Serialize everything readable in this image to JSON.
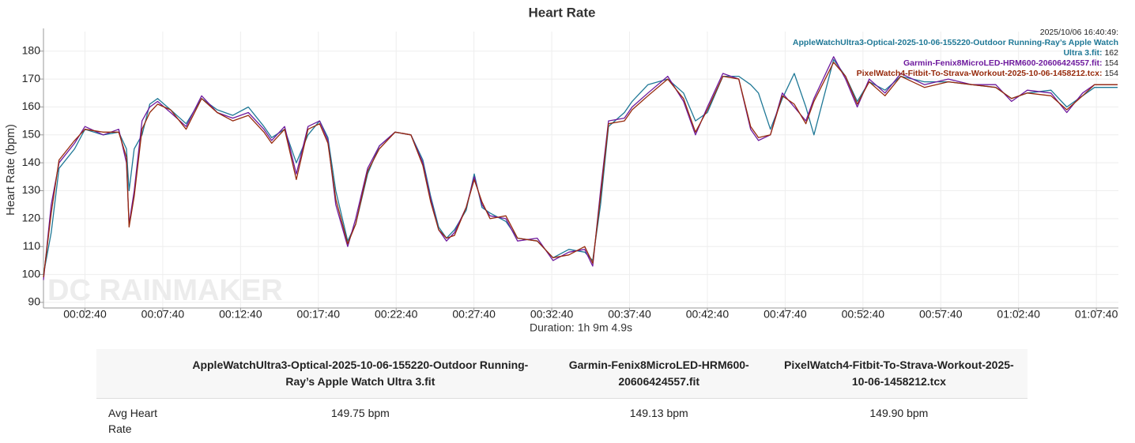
{
  "chart_data": {
    "type": "line",
    "title": "Heart Rate",
    "y_label": "Heart Rate (bpm)",
    "x_label": "Duration: 1h 9m 4.9s",
    "watermark": "DC RAINMAKER",
    "grid": true,
    "xlim": [
      0,
      4145
    ],
    "ylim": [
      88,
      187
    ],
    "yticks": [
      90,
      100,
      110,
      120,
      130,
      140,
      150,
      160,
      170,
      180
    ],
    "xticks": [
      {
        "value": 160,
        "label": "00:02:40"
      },
      {
        "value": 460,
        "label": "00:07:40"
      },
      {
        "value": 760,
        "label": "00:12:40"
      },
      {
        "value": 1060,
        "label": "00:17:40"
      },
      {
        "value": 1360,
        "label": "00:22:40"
      },
      {
        "value": 1660,
        "label": "00:27:40"
      },
      {
        "value": 1960,
        "label": "00:32:40"
      },
      {
        "value": 2260,
        "label": "00:37:40"
      },
      {
        "value": 2560,
        "label": "00:42:40"
      },
      {
        "value": 2860,
        "label": "00:47:40"
      },
      {
        "value": 3160,
        "label": "00:52:40"
      },
      {
        "value": 3460,
        "label": "00:57:40"
      },
      {
        "value": 3760,
        "label": "01:02:40"
      },
      {
        "value": 4060,
        "label": "01:07:40"
      }
    ],
    "x": [
      0,
      30,
      60,
      120,
      160,
      230,
      290,
      320,
      330,
      350,
      380,
      410,
      440,
      490,
      550,
      610,
      670,
      730,
      790,
      850,
      880,
      930,
      975,
      1020,
      1065,
      1097,
      1127,
      1173,
      1204,
      1250,
      1295,
      1356,
      1417,
      1463,
      1493,
      1524,
      1554,
      1585,
      1630,
      1661,
      1691,
      1722,
      1783,
      1828,
      1904,
      1965,
      2026,
      2087,
      2118,
      2148,
      2179,
      2240,
      2270,
      2331,
      2407,
      2468,
      2514,
      2560,
      2620,
      2681,
      2727,
      2757,
      2803,
      2849,
      2895,
      2940,
      2971,
      3047,
      3093,
      3138,
      3184,
      3245,
      3306,
      3397,
      3489,
      3580,
      3672,
      3733,
      3794,
      3885,
      3946,
      4007,
      4053,
      4142
    ],
    "series": [
      {
        "name": "AppleWatchUltra3-Optical-2025-10-06-155220-Outdoor Running-Ray’s Apple Watch Ultra 3.fit",
        "color": "#1f7896",
        "values": [
          100,
          115,
          138,
          145,
          152,
          150,
          151,
          145,
          130,
          145,
          150,
          161,
          163,
          159,
          154,
          163,
          159,
          157,
          160,
          153,
          149,
          152,
          140,
          150,
          155,
          149,
          130,
          112,
          118,
          136,
          146,
          151,
          150,
          141,
          128,
          117,
          113,
          116,
          123,
          136,
          124,
          122,
          119,
          113,
          112,
          106,
          109,
          108,
          105,
          125,
          153,
          158,
          162,
          168,
          170,
          165,
          155,
          158,
          171,
          171,
          168,
          165,
          152,
          163,
          172,
          160,
          150,
          177,
          171,
          162,
          169,
          166,
          171,
          169,
          169,
          168,
          167,
          163,
          165,
          166,
          160,
          164,
          167,
          167
        ]
      },
      {
        "name": "Garmin-Fenix8MicroLED-HRM600-20606424557.fit",
        "color": "#6e1a9e",
        "values": [
          98,
          125,
          140,
          147,
          153,
          150,
          152,
          140,
          118,
          130,
          155,
          160,
          162,
          158,
          153,
          164,
          158,
          156,
          158,
          152,
          148,
          153,
          136,
          153,
          155,
          148,
          125,
          110,
          120,
          138,
          146,
          151,
          150,
          140,
          127,
          116,
          112,
          115,
          124,
          135,
          125,
          121,
          120,
          112,
          113,
          105,
          108,
          109,
          103,
          130,
          155,
          156,
          160,
          165,
          171,
          162,
          150,
          160,
          172,
          170,
          152,
          148,
          150,
          165,
          160,
          155,
          163,
          178,
          170,
          160,
          170,
          165,
          172,
          168,
          170,
          168,
          168,
          162,
          166,
          165,
          158,
          165,
          168,
          168
        ]
      },
      {
        "name": "PixelWatch4-Fitbit-To-Strava-Workout-2025-10-06-1458212.tcx",
        "color": "#962a0c",
        "values": [
          99,
          122,
          141,
          148,
          152,
          151,
          151,
          142,
          117,
          128,
          152,
          158,
          161,
          159,
          152,
          163,
          158,
          155,
          157,
          151,
          147,
          152,
          134,
          152,
          154,
          147,
          127,
          111,
          118,
          137,
          145,
          151,
          150,
          139,
          126,
          116,
          113,
          114,
          124,
          134,
          126,
          120,
          121,
          113,
          112,
          106,
          107,
          110,
          104,
          128,
          154,
          155,
          159,
          164,
          170,
          163,
          151,
          159,
          171,
          170,
          153,
          149,
          150,
          164,
          161,
          154,
          162,
          176,
          171,
          161,
          169,
          164,
          171,
          167,
          169,
          168,
          167,
          163,
          165,
          164,
          159,
          164,
          168,
          168
        ]
      }
    ],
    "tooltip": {
      "time": "2025/10/06 16:40:49:",
      "entries": [
        {
          "label": "AppleWatchUltra3-Optical-2025-10-06-155220-Outdoor Running-Ray’s Apple Watch Ultra 3.fit:",
          "value": 162
        },
        {
          "label": "Garmin-Fenix8MicroLED-HRM600-20606424557.fit:",
          "value": 154
        },
        {
          "label": "PixelWatch4-Fitbit-To-Strava-Workout-2025-10-06-1458212.tcx:",
          "value": 154
        }
      ]
    }
  },
  "table": {
    "columns": [
      "AppleWatchUltra3-Optical-2025-10-06-155220-Outdoor Running-Ray’s Apple Watch Ultra 3.fit",
      "Garmin-Fenix8MicroLED-HRM600-20606424557.fit",
      "PixelWatch4-Fitbit-To-Strava-Workout-2025-10-06-1458212.tcx"
    ],
    "rows": [
      {
        "label": "Avg Heart Rate",
        "cells": [
          "149.75 bpm",
          "149.13 bpm",
          "149.90 bpm"
        ]
      }
    ]
  }
}
